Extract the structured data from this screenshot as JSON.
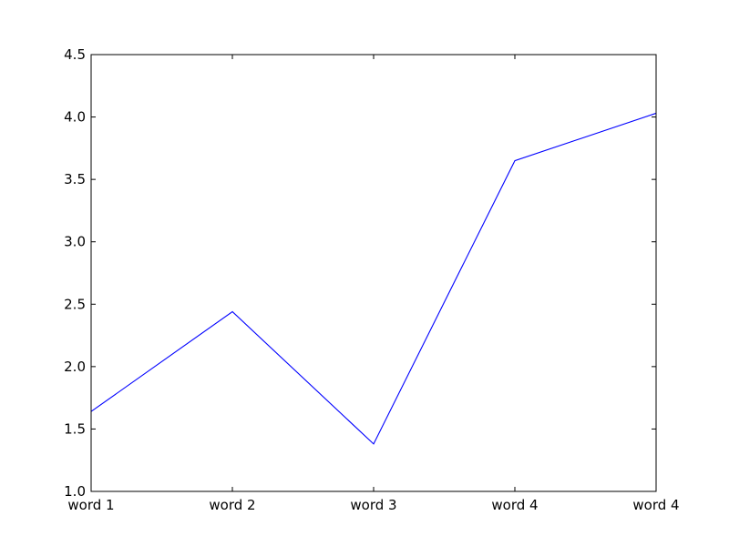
{
  "chart_data": {
    "type": "line",
    "title": "",
    "xlabel": "",
    "ylabel": "",
    "categories": [
      "word 1",
      "word 2",
      "word 3",
      "word 4",
      "word 4"
    ],
    "series": [
      {
        "values": [
          1.64,
          2.44,
          1.38,
          3.65,
          4.03
        ],
        "color": "#0000ff"
      }
    ],
    "ylim": [
      1.0,
      4.5
    ],
    "yticks": [
      "1.0",
      "1.5",
      "2.0",
      "2.5",
      "3.0",
      "3.5",
      "4.0",
      "4.5"
    ],
    "grid": false,
    "legend": "none"
  }
}
